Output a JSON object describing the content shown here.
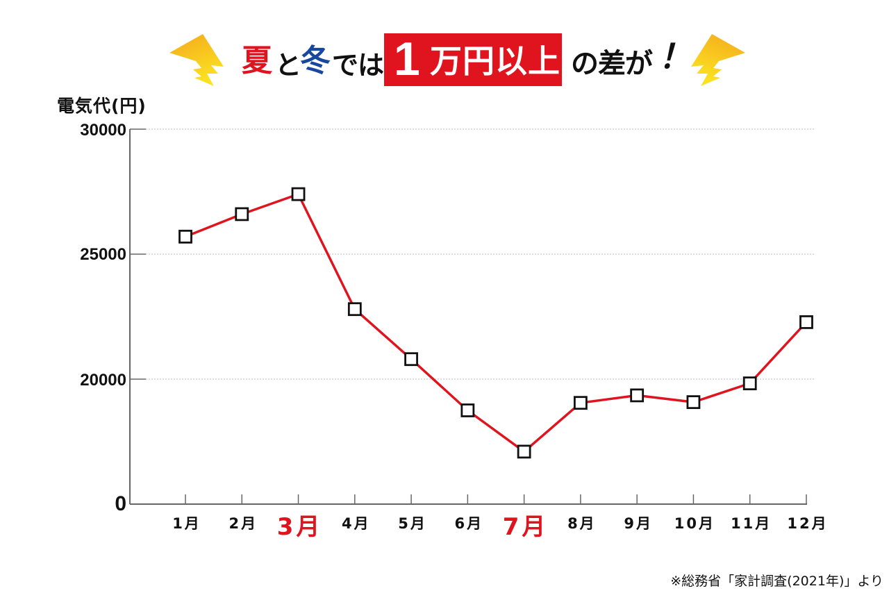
{
  "banner": {
    "summer": "夏",
    "to": "と",
    "winter": "冬",
    "deha": "では",
    "highlight_number": "1",
    "highlight_text": "万円以上",
    "nosa": "の差が",
    "exclaim": "！",
    "colors": {
      "summer": "#e0141e",
      "winter": "#17479e",
      "highlight_bg": "#e0141e",
      "bolt_top": "#f4a81c",
      "bolt_bottom": "#fbe122"
    }
  },
  "source_note": "※総務省「家計調査(2021年)」より",
  "chart_data": {
    "type": "line",
    "title": "夏と冬では1万円以上の差が！",
    "ylabel": "電気代(円)",
    "xlabel": "",
    "categories": [
      "1月",
      "2月",
      "3月",
      "4月",
      "5月",
      "6月",
      "7月",
      "8月",
      "9月",
      "10月",
      "11月",
      "12月"
    ],
    "highlighted_categories": [
      "3月",
      "7月"
    ],
    "series": [
      {
        "name": "電気代",
        "color": "#e0141e",
        "marker": "open-square",
        "values": [
          25700,
          26600,
          27400,
          22800,
          20800,
          18750,
          17100,
          19050,
          19350,
          19080,
          19830,
          22280
        ]
      }
    ],
    "y_ticks": [
      {
        "label": "30000",
        "value": 30000
      },
      {
        "label": "25000",
        "value": 25000
      },
      {
        "label": "20000",
        "value": 20000
      },
      {
        "label": "0",
        "value": 0
      }
    ],
    "ylim": [
      15000,
      30000
    ],
    "axis_break": "y-axis is broken between 0 and 20000; the '0' label sits where 15000 would be",
    "grid": "horizontal dotted lines at 20000, 25000, 30000",
    "legend": "none",
    "source": "※総務省「家計調査(2021年)」より"
  }
}
